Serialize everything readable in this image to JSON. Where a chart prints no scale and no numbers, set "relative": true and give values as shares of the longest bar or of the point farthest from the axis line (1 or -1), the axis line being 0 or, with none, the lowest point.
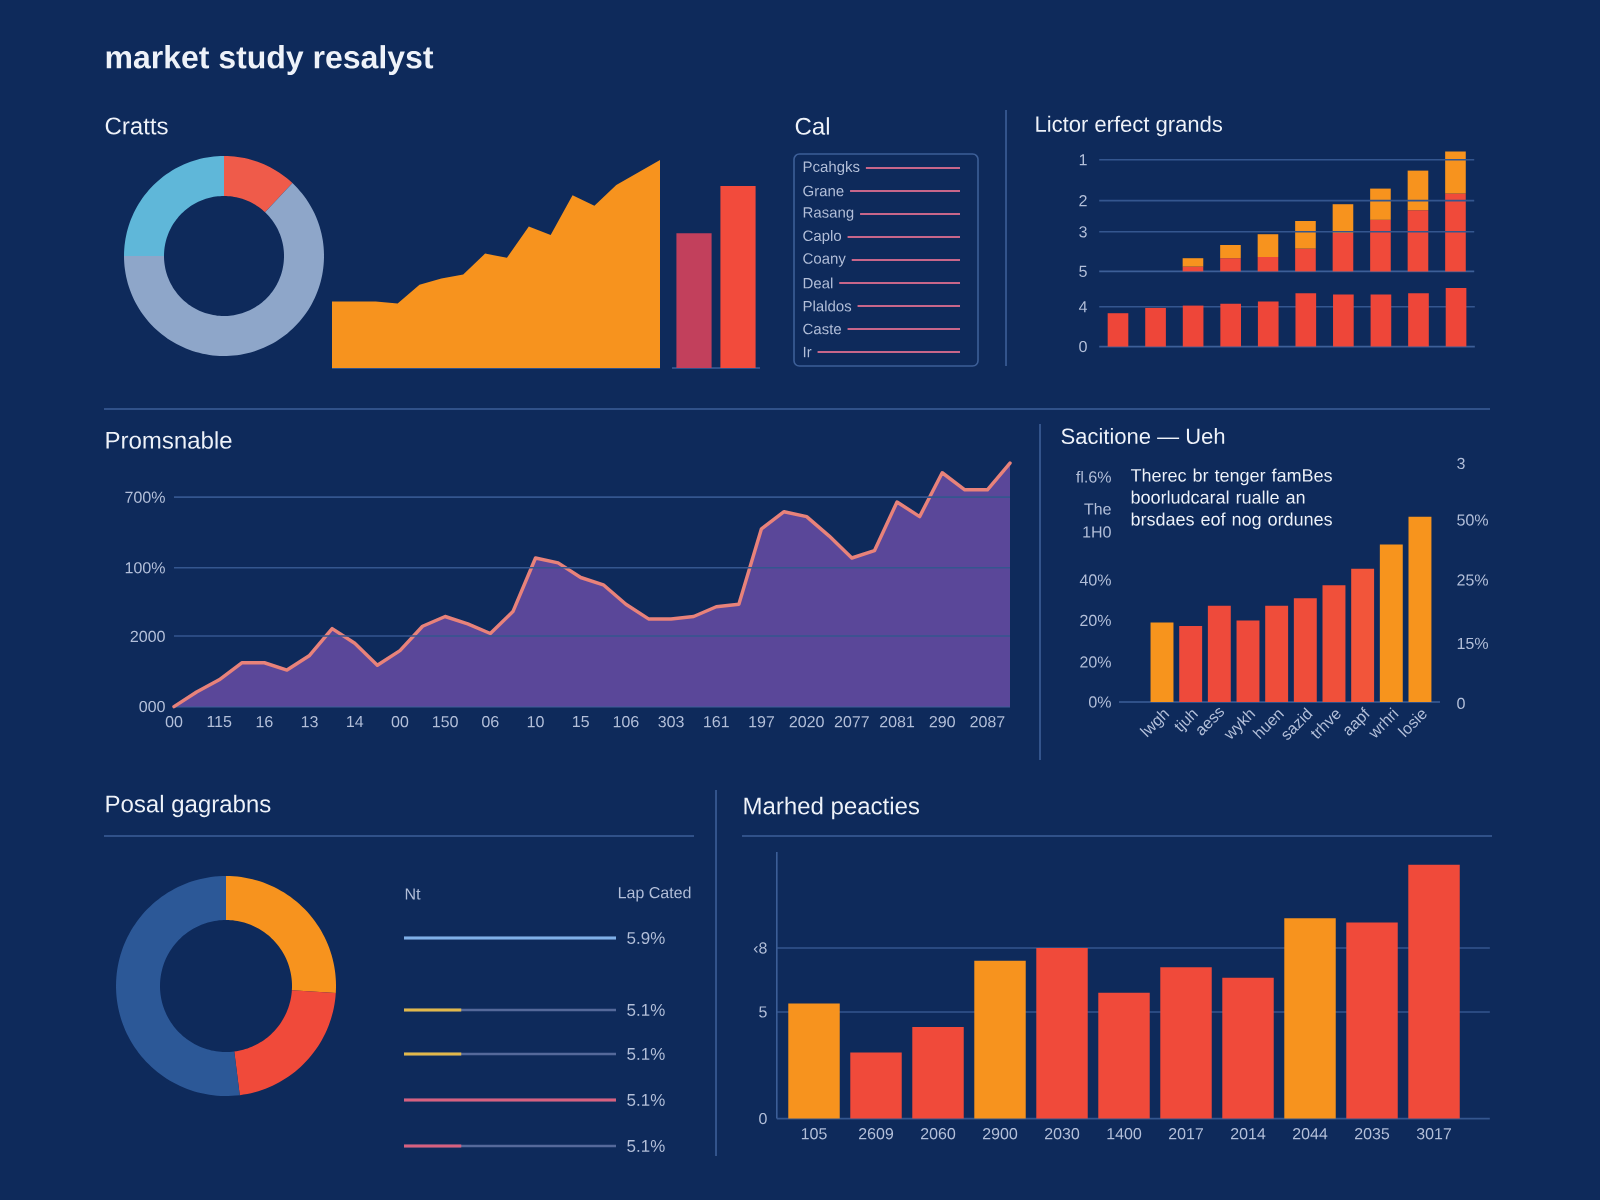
{
  "chart_data": [
    {
      "type": "donut",
      "title": "market study resalyst",
      "subtitle": "Cratts",
      "categories": [
        null,
        null,
        null
      ],
      "values": [
        12,
        63,
        25
      ],
      "colors": [
        "#ef5b4a",
        "#8ea6c9",
        "#5fb7d9"
      ]
    },
    {
      "type": "area",
      "relative": true,
      "categories": [
        null,
        null,
        null,
        null,
        null,
        null,
        null,
        null,
        null,
        null,
        null,
        null,
        null,
        null,
        null,
        null
      ],
      "values": [
        0.32,
        0.32,
        0.32,
        0.31,
        0.4,
        0.43,
        0.45,
        0.55,
        0.53,
        0.68,
        0.64,
        0.83,
        0.78,
        0.88,
        0.94,
        1
      ],
      "color": "#f7931e"
    },
    {
      "type": "bar",
      "relative": true,
      "categories": [
        null,
        null
      ],
      "values": [
        0.74,
        1
      ],
      "colors": [
        "#c2405c",
        "#f24b3c"
      ]
    },
    {
      "type": "other",
      "title": "Cal",
      "annotations": [
        "Pcahgks",
        "Grane",
        "Rasang",
        "Caplo",
        "Coany",
        "Deal",
        "Plaldos",
        "Caste",
        "Ir"
      ]
    },
    {
      "type": "bar",
      "title": "Lictor erfect grands",
      "relative": true,
      "stacked": true,
      "categories": [
        null,
        null,
        null,
        null,
        null,
        null,
        null,
        null
      ],
      "series": [
        {
          "color": "#f04a3a",
          "values": [
            0.04,
            0.11,
            0.12,
            0.19,
            0.32,
            0.43,
            0.51,
            0.65
          ]
        },
        {
          "color": "#f7931e",
          "values": [
            0.07,
            0.11,
            0.19,
            0.23,
            0.24,
            0.26,
            0.33,
            0.35
          ]
        }
      ],
      "ref_lines": [
        {
          "axis": "y",
          "value": 0.33
        },
        {
          "axis": "y",
          "value": 0.59
        },
        {
          "axis": "y",
          "value": 0.93
        }
      ]
    },
    {
      "type": "bar",
      "relative": true,
      "categories": [
        null,
        null,
        null,
        null,
        null,
        null,
        null,
        null,
        null,
        null
      ],
      "values": [
        0.57,
        0.66,
        0.7,
        0.73,
        0.77,
        0.91,
        0.89,
        0.89,
        0.91,
        1
      ],
      "color": "#ee4639",
      "ref_lines": [
        {
          "axis": "y",
          "value": 0.68
        }
      ]
    },
    {
      "type": "other",
      "annotations": [
        "1",
        "2",
        "3",
        "5",
        "4",
        "0"
      ]
    },
    {
      "type": "area",
      "title": "Promsnable",
      "relative": true,
      "categories": [
        "00",
        null,
        "115",
        null,
        "16",
        null,
        "13",
        null,
        "14",
        null,
        "00",
        null,
        "150",
        null,
        "06",
        null,
        "10",
        null,
        "15",
        null,
        "106",
        null,
        "303",
        null,
        "161",
        null,
        "197",
        null,
        "2020",
        null,
        "2077",
        null,
        "2081",
        null,
        "290",
        null,
        "2087",
        null
      ],
      "values": [
        0,
        0.06,
        0.11,
        0.18,
        0.18,
        0.15,
        0.21,
        0.32,
        0.26,
        0.17,
        0.23,
        0.33,
        0.37,
        0.34,
        0.3,
        0.39,
        0.61,
        0.59,
        0.53,
        0.5,
        0.42,
        0.36,
        0.36,
        0.37,
        0.41,
        0.42,
        0.73,
        0.8,
        0.78,
        0.7,
        0.61,
        0.64,
        0.84,
        0.78,
        0.96,
        0.89,
        0.89,
        1
      ],
      "color": "#5a4799",
      "ref_lines": [
        {
          "axis": "y",
          "value": 0.29
        },
        {
          "axis": "y",
          "value": 0.57
        },
        {
          "axis": "y",
          "value": 0.86
        }
      ],
      "annotations": [
        "000",
        "2000",
        "100%",
        "700%"
      ]
    },
    {
      "type": "bar",
      "title": "Sacitione — Ueh",
      "relative": true,
      "annotations": [
        "Therec br tenger famBes boorludcaral rualle an brsdaes eof nog ordunes",
        "fl.6%",
        "The",
        "1H0",
        "40%",
        "20%",
        "20%",
        "0%",
        "3",
        "50%",
        "25%",
        "15%",
        "0"
      ],
      "categories": [
        "lwgh",
        "tjuh",
        "aess",
        "wykh",
        "huen",
        "sazid",
        "trhve",
        "aapf",
        "wrhri",
        "losie"
      ],
      "values": [
        0.43,
        0.41,
        0.52,
        0.44,
        0.52,
        0.56,
        0.63,
        0.72,
        0.85,
        1
      ],
      "colors": [
        "#f7941d",
        "#ee4a3b",
        "#ee4a3b",
        "#ee4a3b",
        "#ef4d3a",
        "#ef4d3a",
        "#f0503a",
        "#f2553a",
        "#f7941d",
        "#f7941d"
      ]
    },
    {
      "type": "donut",
      "title": "Posal gagrabns",
      "categories": [
        null,
        null,
        null
      ],
      "values": [
        26,
        22,
        52
      ],
      "colors": [
        "#f7931e",
        "#f04a3a",
        "#2c5897"
      ]
    },
    {
      "type": "other",
      "annotations": [
        "Nt",
        "Lap Cated",
        "5.9%",
        "5.1%",
        "5.1%",
        "5.1%",
        "5.1%"
      ]
    },
    {
      "type": "bar",
      "title": "Marhed peacties",
      "categories": [
        "105",
        "2609",
        "2060",
        "2900",
        "2030",
        "1400",
        "2017",
        "2014",
        "2044",
        "2035",
        "3017"
      ],
      "values": [
        5.4,
        3.1,
        4.3,
        7.4,
        8.0,
        5.9,
        7.1,
        6.6,
        9.4,
        9.2,
        11.9
      ],
      "colors": [
        "#f7931e",
        "#f04a3a",
        "#f04a3a",
        "#f7931e",
        "#f04a3a",
        "#f04a3a",
        "#f04a3a",
        "#f04a3a",
        "#f7931e",
        "#f04a3a",
        "#f04a3a"
      ],
      "ylim": [
        0,
        12.5
      ],
      "yticks": [
        0,
        5,
        {
          "value": 8,
          "label": "‹8"
        }
      ],
      "grid": "y"
    }
  ]
}
